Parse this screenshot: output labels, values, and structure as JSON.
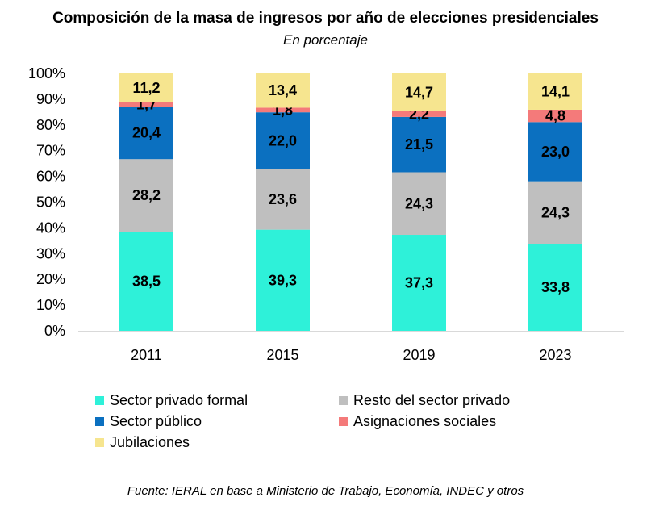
{
  "title": "Composición de la masa de ingresos por año de elecciones presidenciales",
  "subtitle": "En porcentaje",
  "source": "Fuente: IERAL en base a Ministerio de Trabajo, Economía, INDEC y otros",
  "colors": {
    "Sector privado formal": "#2ef1d9",
    "Resto del sector privado": "#bfbfbf",
    "Sector público": "#0b70c0",
    "Asignaciones sociales": "#f47a7a",
    "Jubilaciones": "#f6e58f"
  },
  "chart_data": {
    "type": "bar",
    "stacked": true,
    "categories": [
      "2011",
      "2015",
      "2019",
      "2023"
    ],
    "ylim": [
      0,
      100
    ],
    "yticks": [
      "0%",
      "10%",
      "20%",
      "30%",
      "40%",
      "50%",
      "60%",
      "70%",
      "80%",
      "90%",
      "100%"
    ],
    "grid": false,
    "legend_position": "bottom",
    "series": [
      {
        "name": "Sector privado formal",
        "values": [
          38.5,
          39.3,
          37.3,
          33.8
        ],
        "labels": [
          "38,5",
          "39,3",
          "37,3",
          "33,8"
        ]
      },
      {
        "name": "Resto del sector privado",
        "values": [
          28.2,
          23.6,
          24.3,
          24.3
        ],
        "labels": [
          "28,2",
          "23,6",
          "24,3",
          "24,3"
        ]
      },
      {
        "name": "Sector público",
        "values": [
          20.4,
          22.0,
          21.5,
          23.0
        ],
        "labels": [
          "20,4",
          "22,0",
          "21,5",
          "23,0"
        ]
      },
      {
        "name": "Asignaciones sociales",
        "values": [
          1.7,
          1.8,
          2.2,
          4.8
        ],
        "labels": [
          "1,7",
          "1,8",
          "2,2",
          "4,8"
        ]
      },
      {
        "name": "Jubilaciones",
        "values": [
          11.2,
          13.4,
          14.7,
          14.1
        ],
        "labels": [
          "11,2",
          "13,4",
          "14,7",
          "14,1"
        ]
      }
    ]
  }
}
